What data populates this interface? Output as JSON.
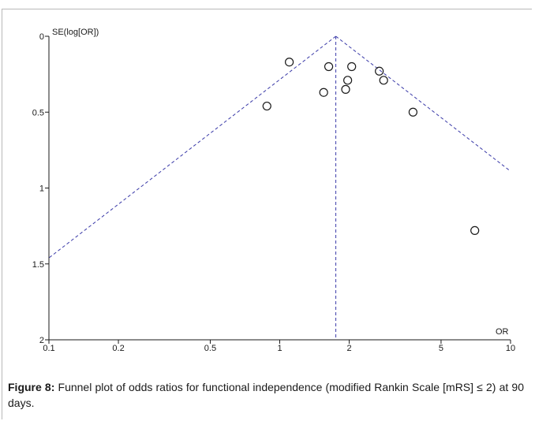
{
  "caption": {
    "label": "Figure 8:",
    "text": " Funnel plot of odds ratios for functional independence (modified Rankin Scale [mRS] ≤ 2) at 90 days."
  },
  "chart_data": {
    "type": "scatter",
    "title": "",
    "xlabel": "OR",
    "ylabel": "SE(log[OR])",
    "x_scale": "log",
    "xlim": [
      0.1,
      10
    ],
    "ylim": [
      0,
      2
    ],
    "y_inverted": true,
    "x_ticks": [
      0.1,
      0.2,
      0.5,
      1,
      2,
      5,
      10
    ],
    "x_tick_labels": [
      "0.1",
      "0.2",
      "0.5",
      "1",
      "2",
      "5",
      "10"
    ],
    "y_ticks": [
      0,
      0.5,
      1,
      1.5,
      2
    ],
    "y_tick_labels": [
      "0",
      "0.5",
      "1",
      "1.5",
      "2"
    ],
    "pooled_or": 1.75,
    "funnel_lines": "dashed blue pseudo 95% confidence limits",
    "points": [
      {
        "or": 1.1,
        "se": 0.17
      },
      {
        "or": 1.63,
        "se": 0.2
      },
      {
        "or": 2.05,
        "se": 0.2
      },
      {
        "or": 2.7,
        "se": 0.23
      },
      {
        "or": 1.97,
        "se": 0.29
      },
      {
        "or": 2.82,
        "se": 0.29
      },
      {
        "or": 1.93,
        "se": 0.35
      },
      {
        "or": 1.55,
        "se": 0.37
      },
      {
        "or": 0.88,
        "se": 0.46
      },
      {
        "or": 3.78,
        "se": 0.5
      },
      {
        "or": 7.0,
        "se": 1.28
      }
    ],
    "colors": {
      "funnel": "#3a3aa8",
      "axis": "#1a1a1a",
      "marker": "#1a1a1a"
    }
  }
}
